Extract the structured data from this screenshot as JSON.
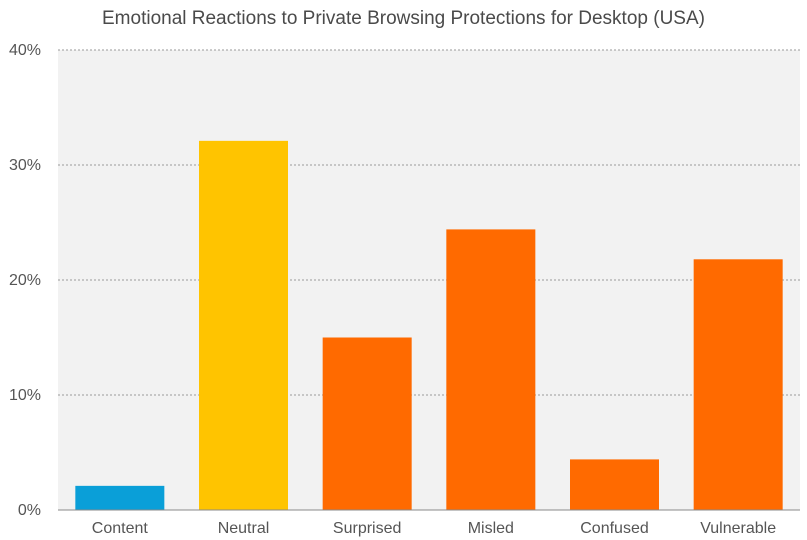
{
  "chart_data": {
    "type": "bar",
    "title": "Emotional Reactions to Private Browsing Protections for Desktop (USA)",
    "xlabel": "",
    "ylabel": "",
    "categories": [
      "Content",
      "Neutral",
      "Surprised",
      "Misled",
      "Confused",
      "Vulnerable"
    ],
    "values": [
      2.1,
      32.1,
      15.0,
      24.4,
      4.4,
      21.8
    ],
    "ylim": [
      0,
      40
    ],
    "yticks": [
      0,
      10,
      20,
      30,
      40
    ],
    "ytick_labels": [
      "0%",
      "10%",
      "20%",
      "30%",
      "40%"
    ],
    "grid": true,
    "legend": "none",
    "colors": [
      "#0a9fd8",
      "#ffc400",
      "#ff6a00",
      "#ff6a00",
      "#ff6a00",
      "#ff6a00"
    ],
    "plot_background": "#f2f2f2"
  }
}
